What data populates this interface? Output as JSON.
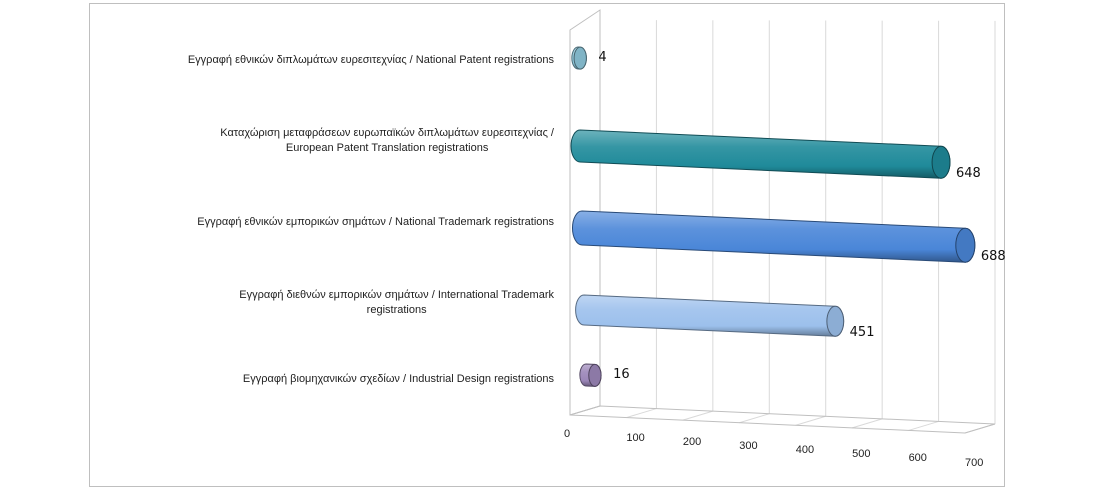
{
  "chart_data": {
    "type": "bar",
    "orientation": "horizontal",
    "style": "3d-cylinder",
    "categories": [
      [
        "Εγγραφή  εθνικών διπλωμάτων ευρεσιτεχνίας / National Patent registrations"
      ],
      [
        "Καταχώριση μεταφράσεων ευρωπαϊκών διπλωμάτων ευρεσιτεχνίας /",
        "European Patent Translation registrations"
      ],
      [
        "Εγγραφή  εθνικών εμπορικών σημάτων / National Trademark registrations"
      ],
      [
        "Εγγραφή  διεθνών εμπορικών σημάτων / International Trademark",
        "registrations"
      ],
      [
        "Εγγραφή  βιομηχανικών σχεδίων / Industrial Design registrations"
      ]
    ],
    "values": [
      4,
      648,
      688,
      451,
      16
    ],
    "value_labels": [
      "4",
      "648",
      "688",
      "451",
      "16"
    ],
    "colors": [
      "#8ec8dc",
      "#1f8a9a",
      "#4a86d8",
      "#9cc0ec",
      "#9b86b8"
    ],
    "xlim": [
      0,
      700
    ],
    "ticks": [
      "0",
      "100",
      "200",
      "300",
      "400",
      "500",
      "600",
      "700"
    ],
    "grid": true,
    "legend": "none",
    "title": "",
    "xlabel": "",
    "ylabel": ""
  }
}
